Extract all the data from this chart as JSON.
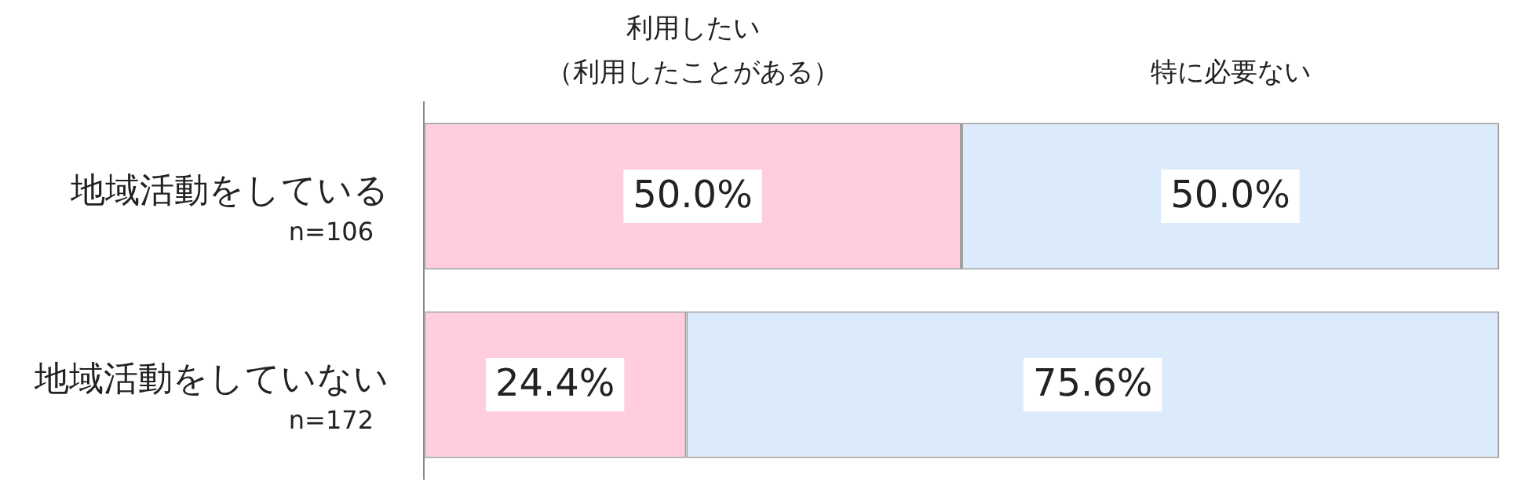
{
  "chart_data": {
    "type": "bar",
    "orientation": "horizontal",
    "stacked": true,
    "categories": [
      "地域活動をしている\nn=106",
      "地域活動をしていない\nn=172"
    ],
    "series": [
      {
        "name": "利用したい（利用したことがある）",
        "color": "#ffcce0",
        "values": [
          50.0,
          24.4
        ],
        "value_labels": [
          "50.0%",
          "24.4%"
        ]
      },
      {
        "name": "特に必要ない",
        "color": "#dcebfb",
        "values": [
          50.0,
          75.6
        ],
        "value_labels": [
          "50.0%",
          "75.6%"
        ]
      }
    ],
    "xlim": [
      0,
      100
    ],
    "tick_labels": "y",
    "legend": false
  }
}
